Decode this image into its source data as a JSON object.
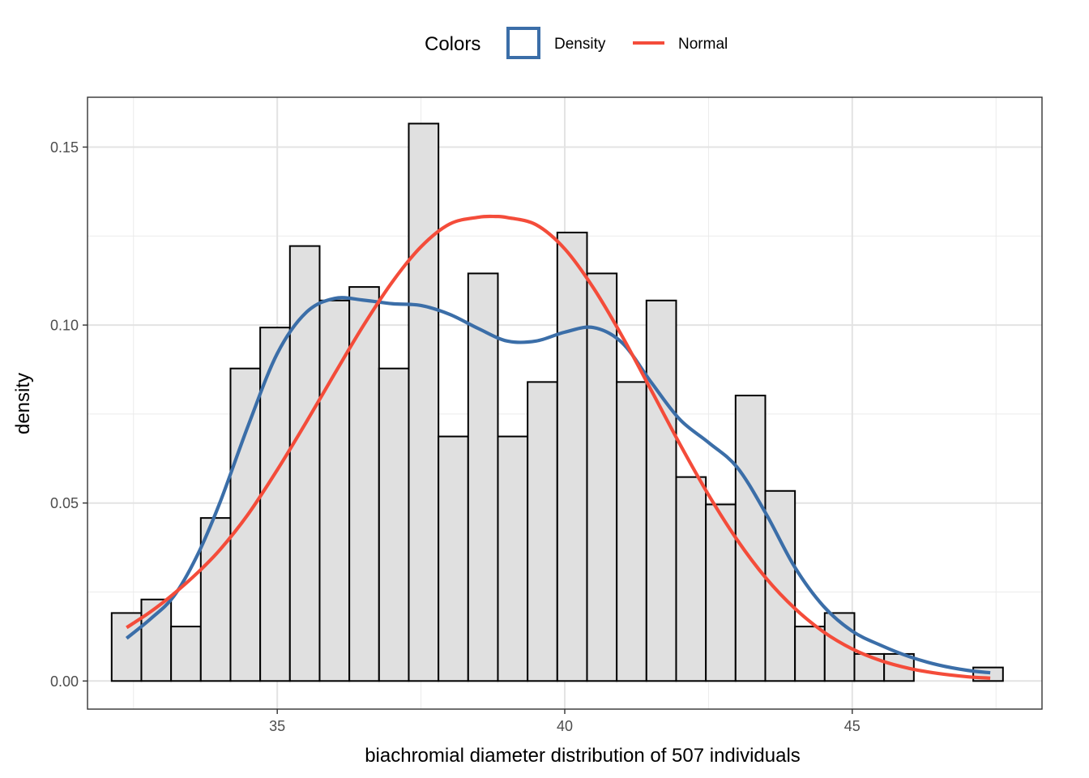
{
  "chart_data": {
    "type": "histogram",
    "xlabel": "biachromial diameter distribution of 507 individuals",
    "ylabel": "density",
    "xlim": [
      31.7,
      48.3
    ],
    "ylim": [
      -0.0079,
      0.164
    ],
    "x_ticks": [
      35,
      40,
      45
    ],
    "x_tick_labels": [
      "35",
      "40",
      "45"
    ],
    "y_ticks": [
      0,
      0.05,
      0.1,
      0.15
    ],
    "y_tick_labels": [
      "0.00",
      "0.05",
      "0.10",
      "0.15"
    ],
    "grid": true,
    "legend": {
      "title": "Colors",
      "position": "top",
      "entries": [
        {
          "label": "Density",
          "color": "#3b6ea8",
          "kind": "box"
        },
        {
          "label": "Normal",
          "color": "#f44c3a",
          "kind": "line"
        }
      ]
    },
    "bars": {
      "fill": "#e0e0e0",
      "stroke": "#000000",
      "bin_width": 0.5167,
      "x_start": 32.12,
      "values": [
        0.0191,
        0.0229,
        0.0153,
        0.0458,
        0.0878,
        0.0993,
        0.1222,
        0.1069,
        0.1107,
        0.0878,
        0.1566,
        0.0687,
        0.1145,
        0.0687,
        0.084,
        0.126,
        0.1145,
        0.084,
        0.1069,
        0.0573,
        0.0496,
        0.0802,
        0.0534,
        0.0153,
        0.0191,
        0.0076,
        0.0076,
        0.0,
        0.0,
        0.0038
      ]
    },
    "series": [
      {
        "name": "Density",
        "color": "#3b6ea8",
        "x": [
          32.38,
          32.8,
          33.2,
          33.6,
          34.0,
          34.5,
          35.0,
          35.5,
          36.0,
          36.5,
          37.0,
          37.5,
          38.0,
          38.5,
          39.0,
          39.5,
          40.0,
          40.5,
          41.0,
          41.5,
          42.0,
          42.5,
          43.0,
          43.5,
          44.0,
          44.5,
          45.0,
          45.5,
          46.0,
          46.5,
          47.0,
          47.4
        ],
        "y": [
          0.012,
          0.0175,
          0.0238,
          0.035,
          0.05,
          0.072,
          0.092,
          0.1035,
          0.1075,
          0.107,
          0.106,
          0.1055,
          0.103,
          0.099,
          0.0955,
          0.0955,
          0.098,
          0.0993,
          0.095,
          0.084,
          0.0735,
          0.067,
          0.06,
          0.047,
          0.032,
          0.021,
          0.014,
          0.01,
          0.0068,
          0.0045,
          0.003,
          0.0023
        ]
      },
      {
        "name": "Normal",
        "color": "#f44c3a",
        "x": [
          32.38,
          32.8,
          33.2,
          33.6,
          34.0,
          34.5,
          35.0,
          35.5,
          36.0,
          36.5,
          37.0,
          37.5,
          38.0,
          38.5,
          38.8,
          39.0,
          39.5,
          40.0,
          40.5,
          41.0,
          41.5,
          42.0,
          42.5,
          43.0,
          43.5,
          44.0,
          44.5,
          45.0,
          45.5,
          46.0,
          46.5,
          47.0,
          47.4
        ],
        "y": [
          0.015,
          0.0195,
          0.0245,
          0.0302,
          0.0368,
          0.047,
          0.0593,
          0.0726,
          0.0864,
          0.0999,
          0.1121,
          0.122,
          0.1284,
          0.1303,
          0.1305,
          0.1302,
          0.1282,
          0.1214,
          0.1104,
          0.0968,
          0.0818,
          0.0666,
          0.0523,
          0.0396,
          0.0289,
          0.0204,
          0.0138,
          0.009,
          0.0057,
          0.0035,
          0.0021,
          0.0012,
          0.0008
        ]
      }
    ]
  }
}
